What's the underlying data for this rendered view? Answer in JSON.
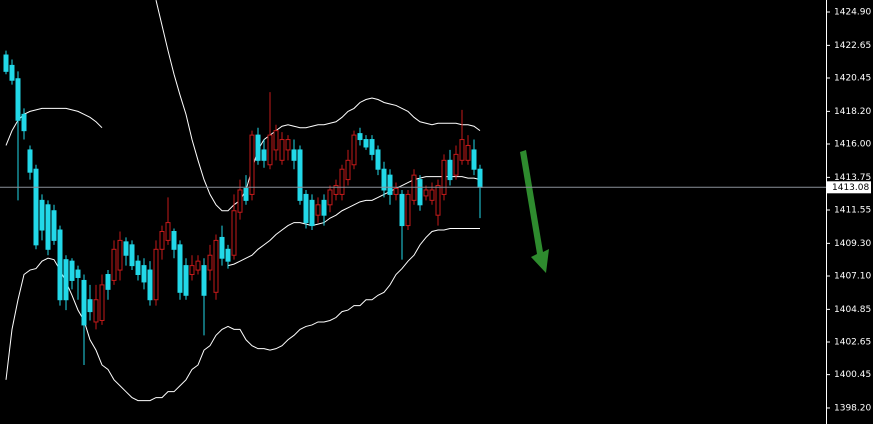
{
  "chart_data": {
    "type": "candlestick",
    "background": "#000000",
    "up_color": "#c41a1a",
    "down_color": "#22d8e8",
    "band_color": "#ffffff",
    "axis_color": "#ffffff",
    "ylim": [
      1397.12,
      1425.71
    ],
    "yticks": [
      {
        "value": 1424.9,
        "label": "1424.90"
      },
      {
        "value": 1422.65,
        "label": "1422.65"
      },
      {
        "value": 1420.45,
        "label": "1420.45"
      },
      {
        "value": 1418.2,
        "label": "1418.20"
      },
      {
        "value": 1416.0,
        "label": "1416.00"
      },
      {
        "value": 1413.75,
        "label": "1413.75"
      },
      {
        "value": 1411.55,
        "label": "1411.55"
      },
      {
        "value": 1409.3,
        "label": "1409.30"
      },
      {
        "value": 1407.1,
        "label": "1407.10"
      },
      {
        "value": 1404.85,
        "label": "1404.85"
      },
      {
        "value": 1402.65,
        "label": "1402.65"
      },
      {
        "value": 1400.45,
        "label": "1400.45"
      },
      {
        "value": 1398.2,
        "label": "1398.20"
      }
    ],
    "open": [
      1422.0,
      1421.3,
      1420.4,
      1418.0,
      1415.6,
      1414.3,
      1412.2,
      1411.9,
      1411.5,
      1410.2,
      1408.2,
      1408.1,
      1407.5,
      1406.8,
      1405.5,
      1404.0,
      1404.1,
      1407.2,
      1406.8,
      1407.5,
      1409.4,
      1409.2,
      1408.1,
      1407.8,
      1407.5,
      1405.5,
      1408.9,
      1409.5,
      1410.1,
      1409.2,
      1407.8,
      1407.2,
      1407.5,
      1407.8,
      1407.5,
      1406.0,
      1409.7,
      1408.9,
      1408.5,
      1411.4,
      1413.0,
      1412.6,
      1416.6,
      1415.6,
      1414.6,
      1415.6,
      1414.9,
      1415.6,
      1415.6,
      1415.6,
      1412.6,
      1412.2,
      1411.2,
      1412.2,
      1411.9,
      1412.6,
      1412.6,
      1413.6,
      1414.6,
      1416.7,
      1416.3,
      1416.3,
      1415.6,
      1414.3,
      1413.9,
      1412.6,
      1412.6,
      1410.5,
      1412.2,
      1413.6,
      1412.5,
      1412.2,
      1411.2,
      1412.6,
      1414.9,
      1413.9,
      1414.9,
      1414.9,
      1415.6,
      1414.3
    ],
    "high": [
      1422.3,
      1421.7,
      1420.9,
      1418.4,
      1415.9,
      1414.6,
      1412.6,
      1412.2,
      1411.9,
      1410.5,
      1408.5,
      1408.3,
      1407.8,
      1407.2,
      1406.5,
      1406.5,
      1407.2,
      1407.5,
      1409.5,
      1410.1,
      1409.7,
      1409.5,
      1408.5,
      1408.3,
      1408.1,
      1409.5,
      1410.5,
      1412.4,
      1410.3,
      1409.5,
      1408.3,
      1408.5,
      1408.5,
      1408.3,
      1409.2,
      1409.9,
      1410.5,
      1409.2,
      1412.6,
      1413.6,
      1413.9,
      1416.9,
      1417.1,
      1416.3,
      1419.5,
      1417.3,
      1416.8,
      1416.6,
      1416.3,
      1415.9,
      1412.9,
      1412.6,
      1412.4,
      1412.6,
      1413.2,
      1413.6,
      1414.6,
      1415.6,
      1416.9,
      1417.1,
      1416.6,
      1416.6,
      1415.9,
      1414.8,
      1414.3,
      1413.4,
      1412.9,
      1412.9,
      1414.3,
      1413.9,
      1413.2,
      1413.4,
      1413.6,
      1415.3,
      1415.6,
      1415.9,
      1418.3,
      1416.6,
      1416.3,
      1414.6
    ],
    "low": [
      1420.7,
      1420.0,
      1412.2,
      1416.3,
      1413.6,
      1408.9,
      1409.5,
      1408.5,
      1409.2,
      1405.1,
      1404.8,
      1406.2,
      1405.5,
      1401.1,
      1404.1,
      1403.5,
      1403.8,
      1405.5,
      1406.5,
      1406.8,
      1407.8,
      1407.5,
      1406.8,
      1406.2,
      1405.1,
      1405.1,
      1408.2,
      1409.2,
      1408.3,
      1405.5,
      1405.5,
      1406.8,
      1407.2,
      1403.1,
      1406.8,
      1405.5,
      1407.8,
      1407.6,
      1408.2,
      1410.9,
      1411.9,
      1412.2,
      1414.6,
      1414.4,
      1414.3,
      1414.9,
      1414.6,
      1414.9,
      1414.3,
      1411.9,
      1410.3,
      1410.2,
      1410.7,
      1410.5,
      1411.4,
      1412.2,
      1412.2,
      1413.2,
      1414.3,
      1415.9,
      1415.6,
      1414.9,
      1413.9,
      1412.4,
      1411.9,
      1412.2,
      1408.2,
      1410.2,
      1411.9,
      1411.5,
      1412.2,
      1411.9,
      1410.5,
      1412.2,
      1413.2,
      1413.6,
      1414.6,
      1414.6,
      1413.9,
      1411.0
    ],
    "close": [
      1420.9,
      1420.3,
      1417.6,
      1416.9,
      1414.1,
      1409.2,
      1410.2,
      1408.9,
      1409.5,
      1405.5,
      1405.5,
      1406.8,
      1407.0,
      1403.8,
      1404.7,
      1405.5,
      1406.5,
      1406.2,
      1408.9,
      1409.5,
      1408.5,
      1407.8,
      1407.2,
      1406.7,
      1405.5,
      1408.9,
      1410.1,
      1410.7,
      1408.9,
      1406.0,
      1405.8,
      1407.8,
      1408.1,
      1405.8,
      1408.5,
      1409.5,
      1408.3,
      1408.1,
      1411.5,
      1412.9,
      1412.2,
      1416.6,
      1414.9,
      1414.9,
      1416.6,
      1416.9,
      1416.3,
      1416.3,
      1414.9,
      1412.2,
      1410.7,
      1410.5,
      1411.9,
      1411.2,
      1412.9,
      1413.2,
      1414.3,
      1414.9,
      1416.6,
      1416.3,
      1415.8,
      1415.3,
      1414.3,
      1412.9,
      1412.6,
      1413.0,
      1410.5,
      1412.6,
      1413.9,
      1411.9,
      1412.9,
      1412.9,
      1413.2,
      1414.9,
      1413.6,
      1415.3,
      1416.3,
      1415.9,
      1414.3,
      1413.08
    ],
    "bands": {
      "upper": [
        1415.9,
        1416.9,
        1417.6,
        1418.0,
        1418.2,
        1418.3,
        1418.4,
        1418.4,
        1418.4,
        1418.4,
        1418.4,
        1418.3,
        1418.2,
        1418.0,
        1417.8,
        1417.5,
        1417.1,
        null,
        null,
        null,
        null,
        null,
        null,
        null,
        null,
        1425.7,
        1424.0,
        1422.3,
        1420.7,
        1419.3,
        1418.0,
        1416.3,
        1414.9,
        1413.6,
        1412.6,
        1411.9,
        1411.5,
        1411.5,
        1411.9,
        1412.2,
        1412.9,
        1414.3,
        1415.6,
        1416.3,
        1416.6,
        1416.9,
        1417.2,
        1417.3,
        1417.2,
        1417.1,
        1417.1,
        1417.2,
        1417.3,
        1417.3,
        1417.4,
        1417.5,
        1417.8,
        1418.2,
        1418.4,
        1418.8,
        1419.0,
        1419.1,
        1419.0,
        1418.8,
        1418.7,
        1418.6,
        1418.4,
        1418.2,
        1417.8,
        1417.5,
        1417.4,
        1417.3,
        1417.4,
        1417.4,
        1417.4,
        1417.4,
        1417.3,
        1417.3,
        1417.2,
        1416.9
      ],
      "middle": [
        null,
        null,
        null,
        null,
        null,
        null,
        null,
        null,
        null,
        null,
        null,
        null,
        null,
        null,
        null,
        null,
        null,
        null,
        null,
        null,
        null,
        null,
        null,
        null,
        null,
        null,
        null,
        null,
        null,
        null,
        null,
        null,
        null,
        null,
        null,
        null,
        null,
        1407.8,
        1407.9,
        1408.1,
        1408.3,
        1408.5,
        1408.9,
        1409.2,
        1409.5,
        1409.9,
        1410.2,
        1410.5,
        1410.7,
        1410.7,
        1410.6,
        1410.5,
        1410.6,
        1410.7,
        1411.0,
        1411.2,
        1411.5,
        1411.7,
        1411.9,
        1412.1,
        1412.2,
        1412.2,
        1412.4,
        1412.6,
        1412.8,
        1413.0,
        1413.2,
        1413.4,
        1413.6,
        1413.7,
        1413.8,
        1413.8,
        1413.8,
        1413.8,
        1413.8,
        1413.8,
        1413.8,
        1413.7,
        1413.7,
        1413.6
      ],
      "lower": [
        1400.1,
        1403.5,
        1405.5,
        1407.2,
        1407.5,
        1407.6,
        1408.1,
        1408.3,
        1408.2,
        1407.5,
        1406.7,
        1405.8,
        1404.8,
        1404.1,
        1402.8,
        1402.1,
        1401.1,
        1400.8,
        1400.1,
        1399.7,
        1399.3,
        1398.9,
        1398.7,
        1398.7,
        1398.7,
        1398.9,
        1398.9,
        1399.3,
        1399.3,
        1399.7,
        1400.1,
        1400.8,
        1401.1,
        1402.1,
        1402.4,
        1403.1,
        1403.5,
        1403.7,
        1403.5,
        1403.5,
        1402.8,
        1402.4,
        1402.2,
        1402.2,
        1402.1,
        1402.2,
        1402.4,
        1402.8,
        1403.1,
        1403.5,
        1403.7,
        1403.8,
        1404.0,
        1404.0,
        1404.1,
        1404.3,
        1404.7,
        1404.8,
        1405.1,
        1405.1,
        1405.5,
        1405.5,
        1405.8,
        1406.0,
        1406.5,
        1407.2,
        1407.6,
        1408.1,
        1408.5,
        1409.2,
        1409.7,
        1410.1,
        1410.2,
        1410.2,
        1410.3,
        1410.3,
        1410.3,
        1410.3,
        1410.3,
        1410.3
      ]
    }
  }
}
